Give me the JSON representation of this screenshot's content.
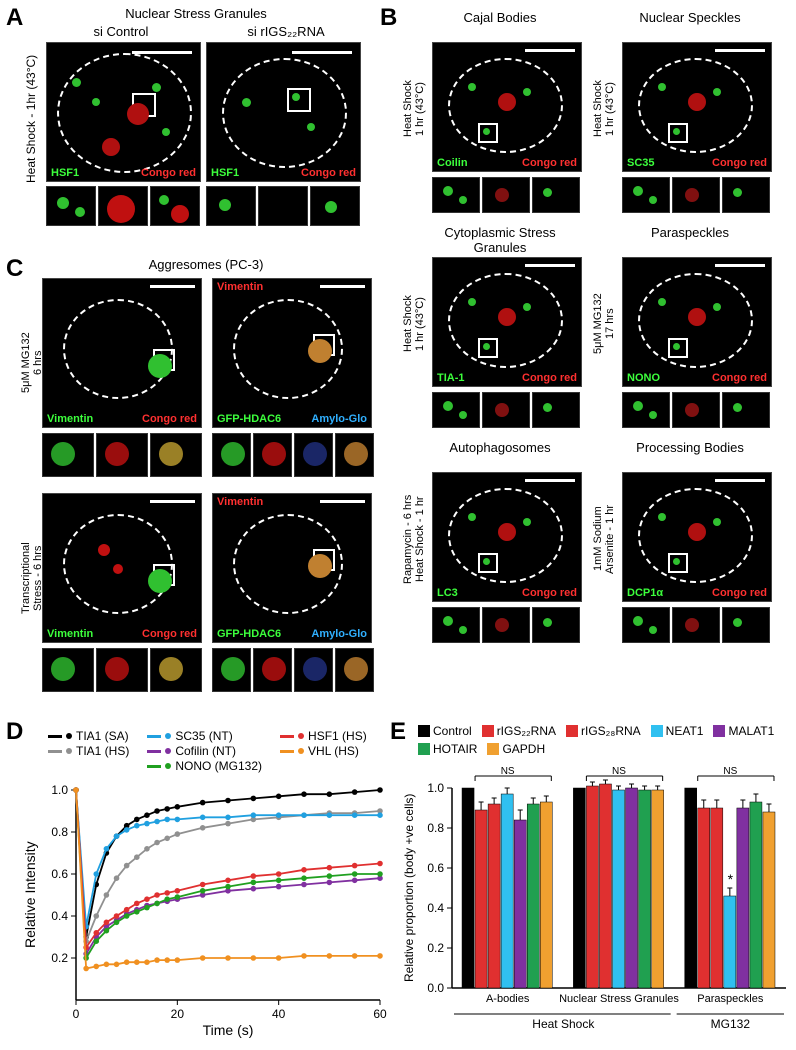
{
  "panels": {
    "A": {
      "label": "A",
      "title": "Nuclear Stress Granules",
      "columns": [
        "si Control",
        "si rIGS₂₂RNA"
      ],
      "side_label": "Heat Shock - 1hr (43°C)",
      "markers": [
        {
          "name": "HSF1",
          "color": "#3cff3c"
        },
        {
          "name": "Congo red",
          "color": "#ff3030"
        }
      ]
    },
    "B": {
      "label": "B",
      "subpanels": [
        {
          "title": "Cajal Bodies",
          "side": "Heat Shock\n1 hr (43°C)",
          "markers": [
            {
              "name": "Coilin",
              "color": "#3cff3c"
            },
            {
              "name": "Congo red",
              "color": "#ff3030"
            }
          ]
        },
        {
          "title": "Nuclear Speckles",
          "side": "Heat Shock\n1 hr (43°C)",
          "markers": [
            {
              "name": "SC35",
              "color": "#3cff3c"
            },
            {
              "name": "Congo red",
              "color": "#ff3030"
            }
          ]
        },
        {
          "title": "Cytoplasmic Stress Granules",
          "side": "Heat Shock\n1 hr (43°C)",
          "markers": [
            {
              "name": "TIA-1",
              "color": "#3cff3c"
            },
            {
              "name": "Congo red",
              "color": "#ff3030"
            }
          ]
        },
        {
          "title": "Paraspeckles",
          "side": "5μM MG132\n17 hrs",
          "markers": [
            {
              "name": "NONO",
              "color": "#3cff3c"
            },
            {
              "name": "Congo red",
              "color": "#ff3030"
            }
          ]
        },
        {
          "title": "Autophagosomes",
          "side": "Rapamycin - 6 hrs\nHeat Shock - 1 hr",
          "markers": [
            {
              "name": "LC3",
              "color": "#3cff3c"
            },
            {
              "name": "Congo red",
              "color": "#ff3030"
            }
          ]
        },
        {
          "title": "Processing Bodies",
          "side": "1mM Sodium\nArsenite - 1 hr",
          "markers": [
            {
              "name": "DCP1α",
              "color": "#3cff3c"
            },
            {
              "name": "Congo red",
              "color": "#ff3030"
            }
          ]
        }
      ]
    },
    "C": {
      "label": "C",
      "title": "Aggresomes (PC-3)",
      "rows": [
        {
          "side": "5μM MG132\n6 hrs"
        },
        {
          "side": "Transcriptional\nStress - 6 hrs"
        }
      ],
      "markers_left": [
        {
          "name": "Vimentin",
          "color": "#3cff3c"
        },
        {
          "name": "Congo red",
          "color": "#ff3030"
        }
      ],
      "markers_right": [
        {
          "name": "Vimentin",
          "color": "#ff3030"
        },
        {
          "name": "GFP-HDAC6",
          "color": "#3cff3c"
        },
        {
          "name": "Amylo-Glo",
          "color": "#30b0ff"
        }
      ]
    },
    "D": {
      "label": "D",
      "xlabel": "Time (s)",
      "ylabel": "Relative Intensity",
      "xlim": [
        0,
        60
      ],
      "ylim": [
        0,
        1.0
      ],
      "xticks": [
        0,
        20,
        40,
        60
      ],
      "yticks": [
        0.2,
        0.4,
        0.6,
        0.8,
        1.0
      ],
      "legend": [
        {
          "name": "TIA1 (SA)",
          "color": "#000000"
        },
        {
          "name": "TIA1 (HS)",
          "color": "#909090"
        },
        {
          "name": "SC35 (NT)",
          "color": "#20a0e0"
        },
        {
          "name": "Cofilin (NT)",
          "color": "#8030a0"
        },
        {
          "name": "NONO (MG132)",
          "color": "#20a020"
        },
        {
          "name": "HSF1 (HS)",
          "color": "#e03030"
        },
        {
          "name": "VHL (HS)",
          "color": "#f09020"
        }
      ],
      "series": {
        "TIA1_SA": {
          "color": "#000000",
          "points": [
            [
              0,
              1.0
            ],
            [
              2,
              0.3
            ],
            [
              4,
              0.55
            ],
            [
              6,
              0.7
            ],
            [
              8,
              0.78
            ],
            [
              10,
              0.83
            ],
            [
              12,
              0.86
            ],
            [
              14,
              0.88
            ],
            [
              16,
              0.9
            ],
            [
              18,
              0.91
            ],
            [
              20,
              0.92
            ],
            [
              25,
              0.94
            ],
            [
              30,
              0.95
            ],
            [
              35,
              0.96
            ],
            [
              40,
              0.97
            ],
            [
              45,
              0.98
            ],
            [
              50,
              0.98
            ],
            [
              55,
              0.99
            ],
            [
              60,
              1.0
            ]
          ]
        },
        "TIA1_HS": {
          "color": "#909090",
          "points": [
            [
              0,
              1.0
            ],
            [
              2,
              0.28
            ],
            [
              4,
              0.4
            ],
            [
              6,
              0.5
            ],
            [
              8,
              0.58
            ],
            [
              10,
              0.64
            ],
            [
              12,
              0.68
            ],
            [
              14,
              0.72
            ],
            [
              16,
              0.75
            ],
            [
              18,
              0.77
            ],
            [
              20,
              0.79
            ],
            [
              25,
              0.82
            ],
            [
              30,
              0.84
            ],
            [
              35,
              0.86
            ],
            [
              40,
              0.87
            ],
            [
              45,
              0.88
            ],
            [
              50,
              0.89
            ],
            [
              55,
              0.89
            ],
            [
              60,
              0.9
            ]
          ]
        },
        "SC35": {
          "color": "#20a0e0",
          "points": [
            [
              0,
              1.0
            ],
            [
              2,
              0.35
            ],
            [
              4,
              0.6
            ],
            [
              6,
              0.72
            ],
            [
              8,
              0.78
            ],
            [
              10,
              0.81
            ],
            [
              12,
              0.83
            ],
            [
              14,
              0.84
            ],
            [
              16,
              0.85
            ],
            [
              18,
              0.86
            ],
            [
              20,
              0.86
            ],
            [
              25,
              0.87
            ],
            [
              30,
              0.87
            ],
            [
              35,
              0.88
            ],
            [
              40,
              0.88
            ],
            [
              45,
              0.88
            ],
            [
              50,
              0.88
            ],
            [
              55,
              0.88
            ],
            [
              60,
              0.88
            ]
          ]
        },
        "Cofilin": {
          "color": "#8030a0",
          "points": [
            [
              0,
              1.0
            ],
            [
              2,
              0.22
            ],
            [
              4,
              0.3
            ],
            [
              6,
              0.35
            ],
            [
              8,
              0.38
            ],
            [
              10,
              0.41
            ],
            [
              12,
              0.43
            ],
            [
              14,
              0.45
            ],
            [
              16,
              0.46
            ],
            [
              18,
              0.47
            ],
            [
              20,
              0.48
            ],
            [
              25,
              0.5
            ],
            [
              30,
              0.52
            ],
            [
              35,
              0.53
            ],
            [
              40,
              0.54
            ],
            [
              45,
              0.55
            ],
            [
              50,
              0.56
            ],
            [
              55,
              0.57
            ],
            [
              60,
              0.58
            ]
          ]
        },
        "NONO": {
          "color": "#20a020",
          "points": [
            [
              0,
              1.0
            ],
            [
              2,
              0.2
            ],
            [
              4,
              0.28
            ],
            [
              6,
              0.33
            ],
            [
              8,
              0.37
            ],
            [
              10,
              0.4
            ],
            [
              12,
              0.42
            ],
            [
              14,
              0.44
            ],
            [
              16,
              0.46
            ],
            [
              18,
              0.48
            ],
            [
              20,
              0.49
            ],
            [
              25,
              0.52
            ],
            [
              30,
              0.54
            ],
            [
              35,
              0.56
            ],
            [
              40,
              0.57
            ],
            [
              45,
              0.58
            ],
            [
              50,
              0.59
            ],
            [
              55,
              0.6
            ],
            [
              60,
              0.6
            ]
          ]
        },
        "HSF1": {
          "color": "#e03030",
          "points": [
            [
              0,
              1.0
            ],
            [
              2,
              0.25
            ],
            [
              4,
              0.32
            ],
            [
              6,
              0.37
            ],
            [
              8,
              0.4
            ],
            [
              10,
              0.43
            ],
            [
              12,
              0.46
            ],
            [
              14,
              0.48
            ],
            [
              16,
              0.5
            ],
            [
              18,
              0.51
            ],
            [
              20,
              0.52
            ],
            [
              25,
              0.55
            ],
            [
              30,
              0.57
            ],
            [
              35,
              0.59
            ],
            [
              40,
              0.6
            ],
            [
              45,
              0.62
            ],
            [
              50,
              0.63
            ],
            [
              55,
              0.64
            ],
            [
              60,
              0.65
            ]
          ]
        },
        "VHL": {
          "color": "#f09020",
          "points": [
            [
              0,
              1.0
            ],
            [
              2,
              0.15
            ],
            [
              4,
              0.16
            ],
            [
              6,
              0.17
            ],
            [
              8,
              0.17
            ],
            [
              10,
              0.18
            ],
            [
              12,
              0.18
            ],
            [
              14,
              0.18
            ],
            [
              16,
              0.19
            ],
            [
              18,
              0.19
            ],
            [
              20,
              0.19
            ],
            [
              25,
              0.2
            ],
            [
              30,
              0.2
            ],
            [
              35,
              0.2
            ],
            [
              40,
              0.2
            ],
            [
              45,
              0.21
            ],
            [
              50,
              0.21
            ],
            [
              55,
              0.21
            ],
            [
              60,
              0.21
            ]
          ]
        }
      }
    },
    "E": {
      "label": "E",
      "ylabel": "Relative proportion (body +ve cells)",
      "ylim": [
        0,
        1.0
      ],
      "yticks": [
        0.0,
        0.2,
        0.4,
        0.6,
        0.8,
        1.0
      ],
      "legend": [
        {
          "name": "Control",
          "color": "#000000"
        },
        {
          "name": "rIGS₂₂RNA",
          "color": "#e03030"
        },
        {
          "name": "rIGS₂₈RNA",
          "color": "#e03030"
        },
        {
          "name": "NEAT1",
          "color": "#30c0f0"
        },
        {
          "name": "MALAT1",
          "color": "#8030a0"
        },
        {
          "name": "HOTAIR",
          "color": "#20a050"
        },
        {
          "name": "GAPDH",
          "color": "#f0a030"
        }
      ],
      "xgroups": [
        {
          "name": "A-bodies",
          "parent": "Heat Shock"
        },
        {
          "name": "Nuclear Stress Granules",
          "parent": "Heat Shock"
        },
        {
          "name": "Paraspeckles",
          "parent": "MG132"
        }
      ],
      "bar_colors": [
        "#000000",
        "#e03030",
        "#e03030",
        "#30c0f0",
        "#8030a0",
        "#20a050",
        "#f0a030"
      ],
      "data": {
        "A-bodies": [
          1.0,
          0.89,
          0.92,
          0.97,
          0.84,
          0.92,
          0.93
        ],
        "Nuclear Stress Granules": [
          1.0,
          1.01,
          1.02,
          0.99,
          1.0,
          0.99,
          0.99
        ],
        "Paraspeckles": [
          1.0,
          0.9,
          0.9,
          0.46,
          0.9,
          0.93,
          0.88
        ]
      },
      "errors": {
        "A-bodies": [
          0,
          0.04,
          0.03,
          0.03,
          0.05,
          0.03,
          0.03
        ],
        "Nuclear Stress Granules": [
          0,
          0.02,
          0.02,
          0.02,
          0.02,
          0.02,
          0.02
        ],
        "Paraspeckles": [
          0,
          0.04,
          0.04,
          0.04,
          0.04,
          0.04,
          0.04
        ]
      },
      "annotations": {
        "sig_star_abodies": "*",
        "sig_star_paraspeckles": "*",
        "ns": "NS"
      }
    }
  }
}
